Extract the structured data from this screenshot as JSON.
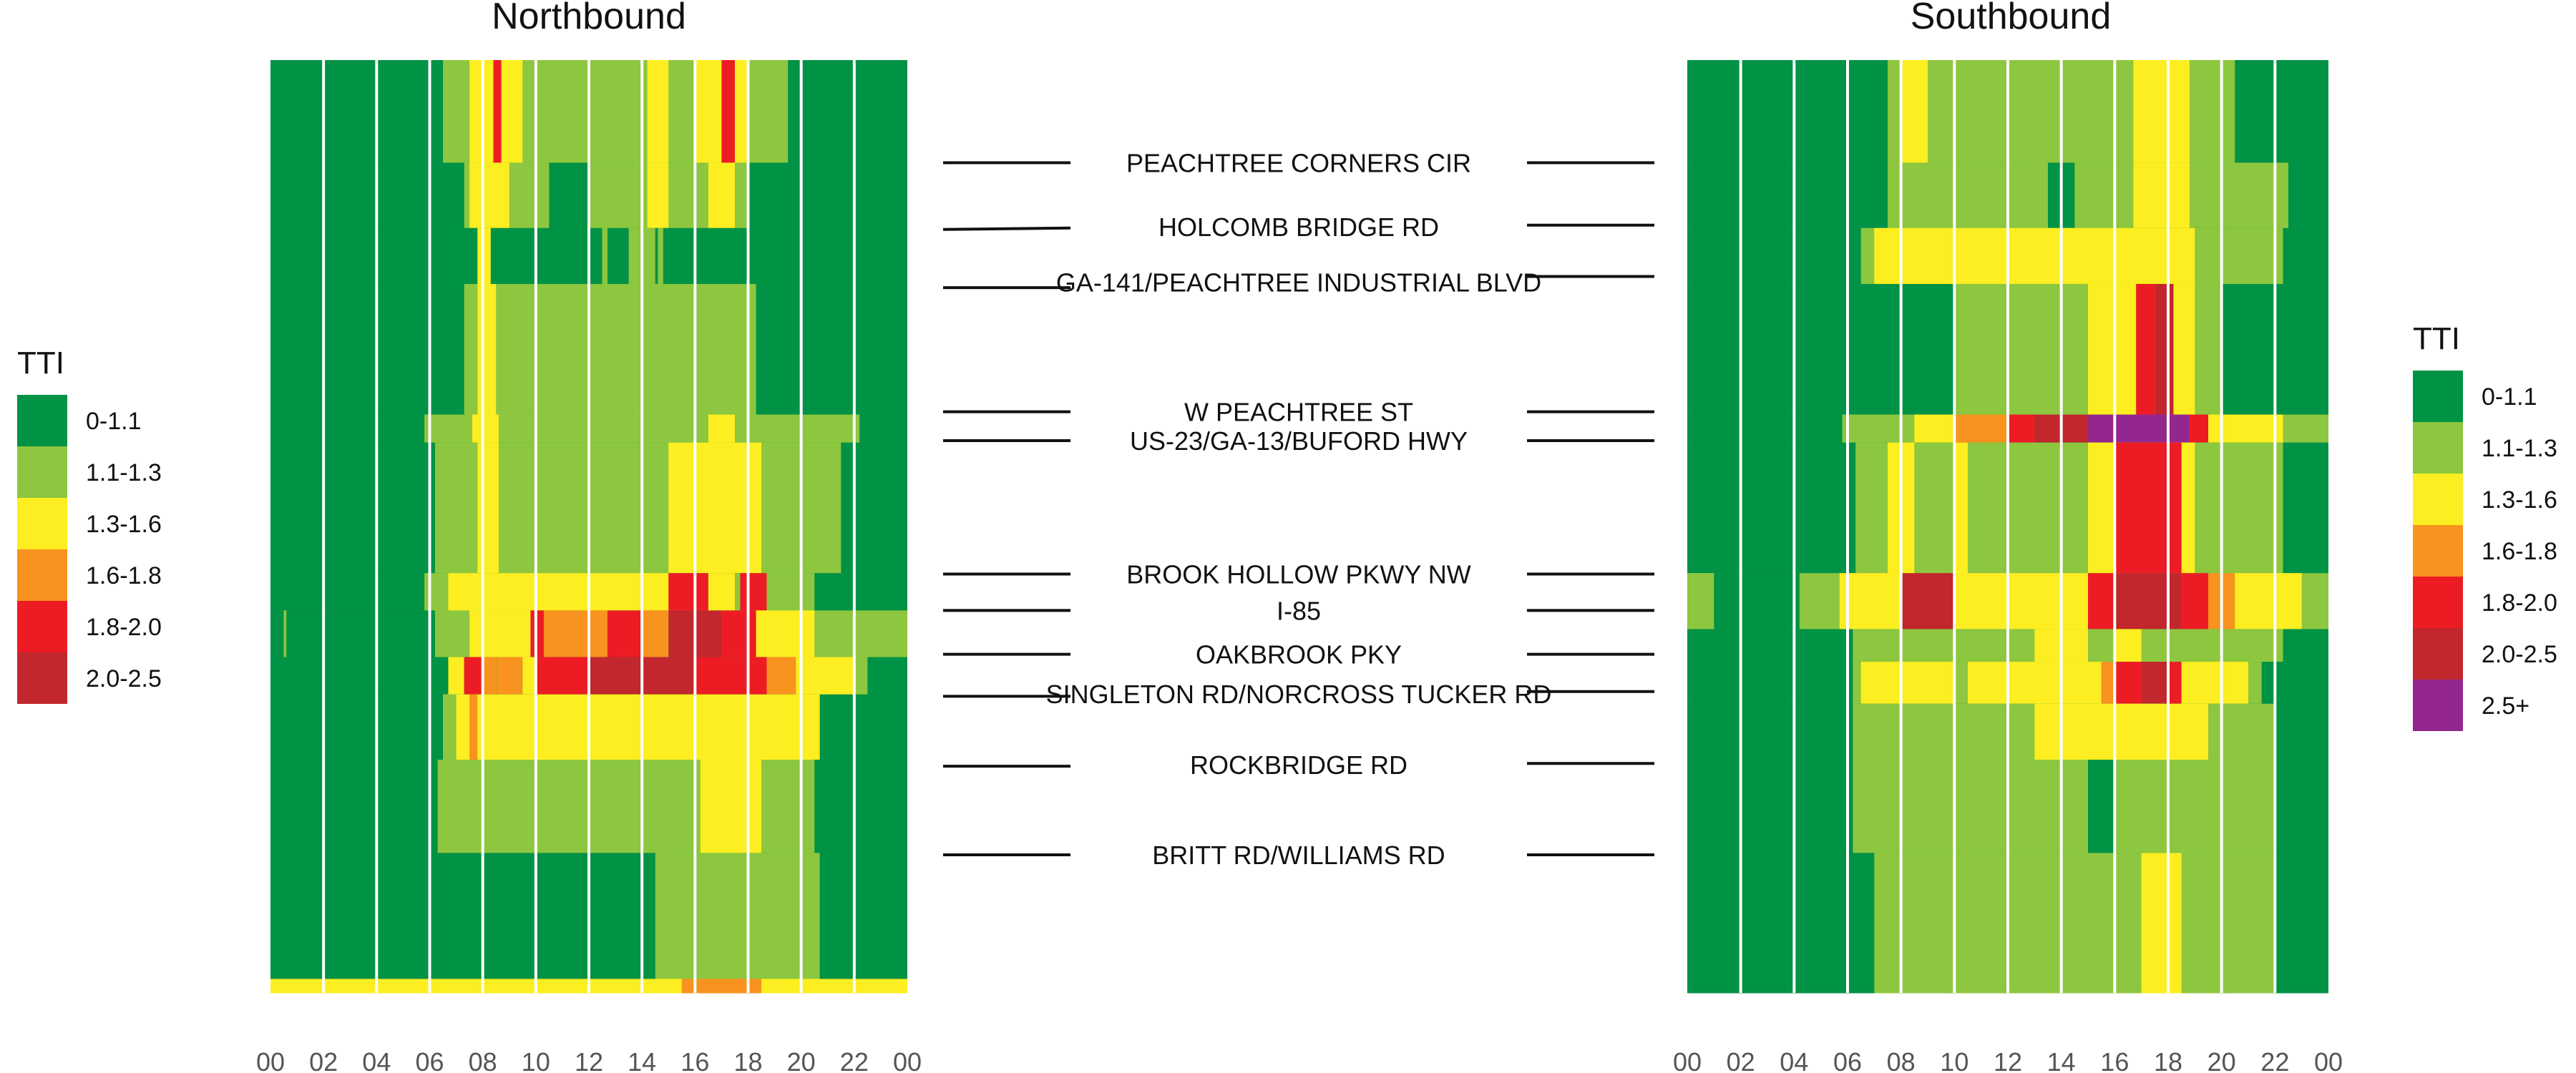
{
  "chart_data": {
    "type": "heatmap",
    "x_ticks": [
      "00",
      "02",
      "04",
      "06",
      "08",
      "10",
      "12",
      "14",
      "16",
      "18",
      "20",
      "22",
      "00"
    ],
    "xlim": [
      0,
      24
    ],
    "colors": {
      "0-1.1": "#009245",
      "1.1-1.3": "#8dc63f",
      "1.3-1.6": "#fcee21",
      "1.6-1.8": "#f7931e",
      "1.8-2.0": "#ed1c24",
      "2.0-2.5": "#c1272d",
      "2.5+": "#93278f"
    },
    "roads": [
      {
        "name": "PEACHTREE CORNERS CIR",
        "nb": 0.11,
        "sb": 0.11
      },
      {
        "name": "HOLCOMB BRIDGE RD",
        "nb": 0.18,
        "sb": 0.177
      },
      {
        "name": "GA-141/PEACHTREE INDUSTRIAL BLVD",
        "nb": 0.244,
        "sb": 0.232
      },
      {
        "name": "W PEACHTREE ST",
        "nb": 0.377,
        "sb": 0.377
      },
      {
        "name": "US-23/GA-13/BUFORD HWY",
        "nb": 0.408,
        "sb": 0.408
      },
      {
        "name": "BROOK HOLLOW PKWY NW",
        "nb": 0.551,
        "sb": 0.551
      },
      {
        "name": "I-85",
        "nb": 0.59,
        "sb": 0.59
      },
      {
        "name": "OAKBROOK PKY",
        "nb": 0.637,
        "sb": 0.637
      },
      {
        "name": "SINGLETON RD/NORCROSS TUCKER RD",
        "nb": 0.682,
        "sb": 0.677
      },
      {
        "name": "ROCKBRIDGE RD",
        "nb": 0.757,
        "sb": 0.754
      },
      {
        "name": "BRITT RD/WILLIAMS RD",
        "nb": 0.852,
        "sb": 0.852
      }
    ],
    "panels": [
      {
        "title": "Northbound",
        "bands": [
          {
            "y0": 0.0,
            "y1": 0.11,
            "base": "0-1.1",
            "cells": [
              [
                6.5,
                16,
                "1.1-1.3"
              ],
              [
                7.5,
                9.5,
                "1.3-1.6"
              ],
              [
                8.4,
                8.7,
                "1.8-2.0"
              ],
              [
                14.2,
                15,
                "1.3-1.6"
              ],
              [
                16,
                18,
                "1.3-1.6"
              ],
              [
                17,
                17.5,
                "1.8-2.0"
              ],
              [
                18,
                19.5,
                "1.1-1.3"
              ]
            ]
          },
          {
            "y0": 0.11,
            "y1": 0.18,
            "base": "0-1.1",
            "cells": [
              [
                7.3,
                10.5,
                "1.1-1.3"
              ],
              [
                7.5,
                9,
                "1.3-1.6"
              ],
              [
                12,
                18,
                "1.1-1.3"
              ],
              [
                14.2,
                15,
                "1.3-1.6"
              ],
              [
                16.5,
                17.5,
                "1.3-1.6"
              ]
            ]
          },
          {
            "y0": 0.18,
            "y1": 0.24,
            "base": "0-1.1",
            "cells": [
              [
                7.8,
                8.3,
                "1.3-1.6"
              ],
              [
                12.5,
                12.7,
                "1.1-1.3"
              ],
              [
                13.5,
                14.5,
                "1.1-1.3"
              ],
              [
                14.6,
                14.8,
                "1.1-1.3"
              ]
            ]
          },
          {
            "y0": 0.24,
            "y1": 0.38,
            "base": "0-1.1",
            "cells": [
              [
                7.3,
                18.3,
                "1.1-1.3"
              ],
              [
                7.8,
                8.5,
                "1.3-1.6"
              ]
            ]
          },
          {
            "y0": 0.38,
            "y1": 0.41,
            "base": "0-1.1",
            "cells": [
              [
                5.8,
                22.2,
                "1.1-1.3"
              ],
              [
                7.6,
                8.6,
                "1.3-1.6"
              ],
              [
                16.5,
                17.5,
                "1.3-1.6"
              ]
            ]
          },
          {
            "y0": 0.41,
            "y1": 0.55,
            "base": "0-1.1",
            "cells": [
              [
                6.2,
                21.5,
                "1.1-1.3"
              ],
              [
                7.8,
                8.6,
                "1.3-1.6"
              ],
              [
                15,
                18.5,
                "1.3-1.6"
              ]
            ]
          },
          {
            "y0": 0.55,
            "y1": 0.59,
            "base": "0-1.1",
            "cells": [
              [
                5.8,
                20.5,
                "1.1-1.3"
              ],
              [
                6.7,
                15,
                "1.3-1.6"
              ],
              [
                15,
                16.5,
                "1.8-2.0"
              ],
              [
                16.5,
                17.5,
                "1.3-1.6"
              ],
              [
                17.7,
                18.7,
                "1.8-2.0"
              ],
              [
                18.7,
                20,
                "1.1-1.3"
              ]
            ]
          },
          {
            "y0": 0.59,
            "y1": 0.64,
            "base": "1.1-1.3",
            "cells": [
              [
                0,
                0.5,
                "0-1.1"
              ],
              [
                0.5,
                0.6,
                "1.1-1.3"
              ],
              [
                0.6,
                6.2,
                "0-1.1"
              ],
              [
                7.5,
                9.8,
                "1.3-1.6"
              ],
              [
                9.8,
                10.3,
                "1.8-2.0"
              ],
              [
                10.3,
                11.3,
                "1.6-1.8"
              ],
              [
                11.3,
                12.7,
                "1.6-1.8"
              ],
              [
                12.7,
                14,
                "1.8-2.0"
              ],
              [
                14,
                15,
                "1.6-1.8"
              ],
              [
                15,
                17,
                "2.0-2.5"
              ],
              [
                17,
                18.3,
                "1.8-2.0"
              ],
              [
                18.3,
                20.5,
                "1.3-1.6"
              ]
            ]
          },
          {
            "y0": 0.64,
            "y1": 0.68,
            "base": "0-1.1",
            "cells": [
              [
                6.7,
                7.3,
                "1.3-1.6"
              ],
              [
                7.3,
                8,
                "1.8-2.0"
              ],
              [
                8,
                8.5,
                "1.6-1.8"
              ],
              [
                8.5,
                9.5,
                "1.6-1.8"
              ],
              [
                9.5,
                10,
                "1.3-1.6"
              ],
              [
                10,
                12,
                "1.8-2.0"
              ],
              [
                12,
                14,
                "2.0-2.5"
              ],
              [
                14,
                16,
                "2.0-2.5"
              ],
              [
                16,
                18.7,
                "1.8-2.0"
              ],
              [
                18.7,
                19.8,
                "1.6-1.8"
              ],
              [
                19.8,
                22,
                "1.3-1.6"
              ],
              [
                22,
                22.5,
                "1.1-1.3"
              ]
            ]
          },
          {
            "y0": 0.68,
            "y1": 0.75,
            "base": "0-1.1",
            "cells": [
              [
                6.5,
                20.7,
                "1.3-1.6"
              ],
              [
                7.5,
                7.8,
                "1.6-1.8"
              ],
              [
                6.5,
                7,
                "1.1-1.3"
              ]
            ]
          },
          {
            "y0": 0.75,
            "y1": 0.85,
            "base": "0-1.1",
            "cells": [
              [
                6.3,
                20.5,
                "1.1-1.3"
              ],
              [
                16.2,
                18.5,
                "1.3-1.6"
              ]
            ]
          },
          {
            "y0": 0.85,
            "y1": 0.985,
            "base": "0-1.1",
            "cells": [
              [
                14.5,
                20.7,
                "1.1-1.3"
              ]
            ]
          },
          {
            "y0": 0.985,
            "y1": 1.0,
            "base": "1.3-1.6",
            "cells": [
              [
                15.5,
                18.5,
                "1.6-1.8"
              ]
            ]
          }
        ]
      },
      {
        "title": "Southbound",
        "bands": [
          {
            "y0": 0.0,
            "y1": 0.11,
            "base": "0-1.1",
            "cells": [
              [
                7.5,
                20.5,
                "1.1-1.3"
              ],
              [
                8,
                9,
                "1.3-1.6"
              ],
              [
                16.7,
                18.8,
                "1.3-1.6"
              ]
            ]
          },
          {
            "y0": 0.11,
            "y1": 0.18,
            "base": "0-1.1",
            "cells": [
              [
                7.5,
                22.5,
                "1.1-1.3"
              ],
              [
                16.7,
                18.8,
                "1.3-1.6"
              ],
              [
                13.5,
                14.5,
                "0-1.1"
              ]
            ]
          },
          {
            "y0": 0.18,
            "y1": 0.24,
            "base": "0-1.1",
            "cells": [
              [
                6.5,
                22.3,
                "1.1-1.3"
              ],
              [
                7,
                15,
                "1.3-1.6"
              ],
              [
                15,
                19,
                "1.3-1.6"
              ]
            ]
          },
          {
            "y0": 0.24,
            "y1": 0.38,
            "base": "0-1.1",
            "cells": [
              [
                10,
                20,
                "1.1-1.3"
              ],
              [
                15,
                19,
                "1.3-1.6"
              ],
              [
                16.8,
                17.5,
                "1.8-2.0"
              ],
              [
                17.5,
                18.2,
                "2.0-2.5"
              ]
            ]
          },
          {
            "y0": 0.38,
            "y1": 0.41,
            "base": "0-1.1",
            "cells": [
              [
                5.8,
                24,
                "1.1-1.3"
              ],
              [
                8.5,
                10,
                "1.3-1.6"
              ],
              [
                10,
                12,
                "1.6-1.8"
              ],
              [
                12,
                13,
                "1.8-2.0"
              ],
              [
                13,
                15,
                "2.0-2.5"
              ],
              [
                15,
                18.8,
                "2.5+"
              ],
              [
                18.8,
                19.5,
                "1.8-2.0"
              ],
              [
                19.5,
                22.3,
                "1.3-1.6"
              ]
            ]
          },
          {
            "y0": 0.41,
            "y1": 0.55,
            "base": "0-1.1",
            "cells": [
              [
                6.3,
                22.3,
                "1.1-1.3"
              ],
              [
                7.5,
                8.5,
                "1.3-1.6"
              ],
              [
                10,
                10.5,
                "1.3-1.6"
              ],
              [
                15,
                19,
                "1.3-1.6"
              ],
              [
                16,
                18.5,
                "1.8-2.0"
              ]
            ]
          },
          {
            "y0": 0.55,
            "y1": 0.61,
            "base": "1.1-1.3",
            "cells": [
              [
                0,
                1,
                "1.1-1.3"
              ],
              [
                1,
                4.2,
                "0-1.1"
              ],
              [
                5.7,
                8,
                "1.3-1.6"
              ],
              [
                8,
                10,
                "2.0-2.5"
              ],
              [
                10,
                15,
                "1.3-1.6"
              ],
              [
                15,
                16,
                "1.8-2.0"
              ],
              [
                16,
                18.5,
                "2.0-2.5"
              ],
              [
                18.5,
                19.5,
                "1.8-2.0"
              ],
              [
                19.5,
                20.5,
                "1.6-1.8"
              ],
              [
                20.5,
                23,
                "1.3-1.6"
              ]
            ]
          },
          {
            "y0": 0.61,
            "y1": 0.645,
            "base": "0-1.1",
            "cells": [
              [
                6.2,
                22.3,
                "1.1-1.3"
              ],
              [
                13,
                15,
                "1.3-1.6"
              ],
              [
                16,
                17,
                "1.3-1.6"
              ]
            ]
          },
          {
            "y0": 0.645,
            "y1": 0.69,
            "base": "0-1.1",
            "cells": [
              [
                6.2,
                21.5,
                "1.1-1.3"
              ],
              [
                6.5,
                10,
                "1.3-1.6"
              ],
              [
                10.5,
                15.5,
                "1.3-1.6"
              ],
              [
                15.5,
                16,
                "1.6-1.8"
              ],
              [
                16,
                17,
                "1.8-2.0"
              ],
              [
                17,
                18,
                "2.0-2.5"
              ],
              [
                18,
                18.5,
                "1.8-2.0"
              ],
              [
                18.5,
                21,
                "1.3-1.6"
              ]
            ]
          },
          {
            "y0": 0.69,
            "y1": 0.75,
            "base": "0-1.1",
            "cells": [
              [
                6.2,
                22,
                "1.1-1.3"
              ],
              [
                13,
                19.5,
                "1.3-1.6"
              ]
            ]
          },
          {
            "y0": 0.75,
            "y1": 0.85,
            "base": "0-1.1",
            "cells": [
              [
                6.2,
                22,
                "1.1-1.3"
              ],
              [
                15,
                16,
                "0-1.1"
              ]
            ]
          },
          {
            "y0": 0.85,
            "y1": 1.0,
            "base": "0-1.1",
            "cells": [
              [
                7,
                22,
                "1.1-1.3"
              ],
              [
                17,
                18.5,
                "1.3-1.6"
              ]
            ]
          }
        ]
      }
    ],
    "legends": [
      {
        "title": "TTI",
        "entries": [
          "0-1.1",
          "1.1-1.3",
          "1.3-1.6",
          "1.6-1.8",
          "1.8-2.0",
          "2.0-2.5"
        ]
      },
      {
        "title": "TTI",
        "entries": [
          "0-1.1",
          "1.1-1.3",
          "1.3-1.6",
          "1.6-1.8",
          "1.8-2.0",
          "2.0-2.5",
          "2.5+"
        ]
      }
    ]
  }
}
